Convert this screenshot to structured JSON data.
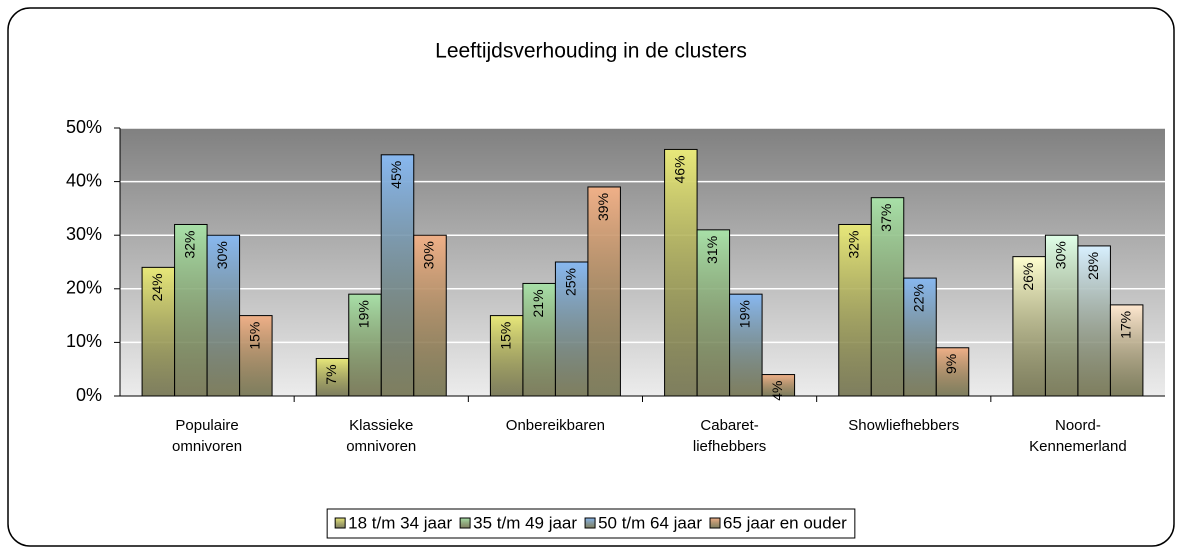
{
  "chart_data": {
    "type": "bar",
    "title": "Leeftijdsverhouding in de clusters",
    "categories": [
      [
        "Populaire",
        "omnivoren"
      ],
      [
        "Klassieke",
        "omnivoren"
      ],
      [
        "Onbereikbaren"
      ],
      [
        "Cabaret-",
        "liefhebbers"
      ],
      [
        "Showliefhebbers"
      ],
      [
        "Noord-",
        "Kennemerland"
      ]
    ],
    "series": [
      {
        "name": "18 t/m 34 jaar",
        "color": "#e8e87a",
        "light_color": "#ffffd0",
        "values": [
          24,
          7,
          15,
          46,
          32,
          26
        ],
        "value_labels": [
          "24%",
          "7%",
          "15%",
          "46%",
          "32%",
          "26%"
        ]
      },
      {
        "name": "35 t/m 49 jaar",
        "color": "#a8e0a8",
        "light_color": "#e0ffe8",
        "values": [
          32,
          19,
          21,
          31,
          37,
          30
        ],
        "value_labels": [
          "32%",
          "19%",
          "21%",
          "31%",
          "37%",
          "30%"
        ]
      },
      {
        "name": "50 t/m 64 jaar",
        "color": "#88b8f0",
        "light_color": "#d8f0ff",
        "values": [
          30,
          45,
          25,
          19,
          22,
          28
        ],
        "value_labels": [
          "30%",
          "45%",
          "25%",
          "19%",
          "22%",
          "28%"
        ]
      },
      {
        "name": "65 jaar en ouder",
        "color": "#f0b088",
        "light_color": "#ffe8d0",
        "values": [
          15,
          30,
          39,
          4,
          9,
          17
        ],
        "value_labels": [
          "15%",
          "30%",
          "39%",
          "4%",
          "9%",
          "17%"
        ]
      }
    ],
    "ylim": [
      0,
      50
    ],
    "yticks": [
      {
        "value": 0,
        "label": "0%"
      },
      {
        "value": 10,
        "label": "10%"
      },
      {
        "value": 20,
        "label": "20%"
      },
      {
        "value": 30,
        "label": "30%"
      },
      {
        "value": 40,
        "label": "40%"
      },
      {
        "value": 50,
        "label": "50%"
      }
    ],
    "grid": true,
    "legend": "bottom"
  }
}
